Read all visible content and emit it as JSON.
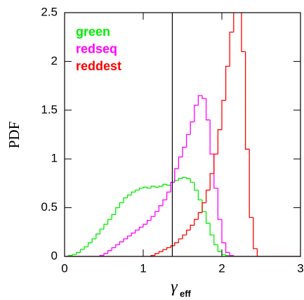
{
  "chart_data": {
    "type": "histogram",
    "xlabel": "γ",
    "xlabel_sub": "eff",
    "ylabel": "PDF",
    "bins": [
      0,
      0.05,
      0.1,
      0.15,
      0.2,
      0.25,
      0.3,
      0.35,
      0.4,
      0.45,
      0.5,
      0.55,
      0.6,
      0.65,
      0.7,
      0.75,
      0.8,
      0.85,
      0.9,
      0.95,
      1,
      1.05,
      1.1,
      1.15,
      1.2,
      1.25,
      1.3,
      1.35,
      1.4,
      1.45,
      1.5,
      1.55,
      1.6,
      1.65,
      1.7,
      1.75,
      1.8,
      1.85,
      1.9,
      1.95,
      2,
      2.05,
      2.1,
      2.15,
      2.2,
      2.25,
      2.3,
      2.35,
      2.4,
      2.45,
      2.5,
      2.55,
      2.6,
      2.65,
      2.7,
      2.75,
      2.8,
      2.85,
      2.9,
      2.95,
      3
    ],
    "series": [
      {
        "name": "green",
        "color": "#00ee00",
        "values": [
          0,
          0.01,
          0.02,
          0.04,
          0.07,
          0.1,
          0.14,
          0.18,
          0.23,
          0.28,
          0.33,
          0.38,
          0.43,
          0.5,
          0.55,
          0.6,
          0.63,
          0.66,
          0.68,
          0.7,
          0.71,
          0.7,
          0.72,
          0.71,
          0.72,
          0.74,
          0.73,
          0.76,
          0.78,
          0.8,
          0.81,
          0.8,
          0.76,
          0.68,
          0.58,
          0.46,
          0.34,
          0.22,
          0.12,
          0.05,
          0.02,
          0.01,
          0,
          0,
          0,
          0,
          0,
          0,
          0,
          0,
          0,
          0,
          0,
          0,
          0,
          0,
          0,
          0,
          0,
          0
        ]
      },
      {
        "name": "redseq",
        "color": "#ff00ff",
        "values": [
          0,
          0,
          0,
          0,
          0,
          0,
          0,
          0,
          0,
          0.01,
          0.03,
          0.06,
          0.09,
          0.12,
          0.15,
          0.18,
          0.21,
          0.24,
          0.27,
          0.3,
          0.33,
          0.37,
          0.41,
          0.46,
          0.52,
          0.58,
          0.66,
          0.76,
          0.9,
          1.02,
          1.12,
          1.25,
          1.38,
          1.55,
          1.65,
          1.62,
          1.4,
          1.05,
          0.7,
          0.38,
          0.14,
          0.04,
          0.01,
          0,
          0,
          0,
          0,
          0,
          0,
          0,
          0,
          0,
          0,
          0,
          0,
          0,
          0,
          0,
          0,
          0
        ]
      },
      {
        "name": "reddest",
        "color": "#ff0000",
        "values": [
          0,
          0,
          0,
          0,
          0,
          0,
          0,
          0,
          0,
          0,
          0,
          0,
          0,
          0,
          0,
          0,
          0,
          0,
          0,
          0,
          0,
          0,
          0.01,
          0.03,
          0.05,
          0.07,
          0.09,
          0.11,
          0.14,
          0.18,
          0.22,
          0.27,
          0.32,
          0.38,
          0.45,
          0.55,
          0.68,
          0.85,
          1.05,
          1.3,
          1.6,
          1.95,
          2.3,
          2.6,
          2.6,
          2.1,
          1.1,
          0.4,
          0.08,
          0,
          0,
          0,
          0,
          0,
          0,
          0,
          0,
          0,
          0,
          0
        ]
      }
    ],
    "vline": 1.37,
    "xlim": [
      0,
      3
    ],
    "xticks": [
      0,
      1,
      2,
      3
    ],
    "ylim": [
      0,
      2.5
    ],
    "yticks": [
      0,
      0.5,
      1,
      1.5,
      2,
      2.5
    ]
  }
}
